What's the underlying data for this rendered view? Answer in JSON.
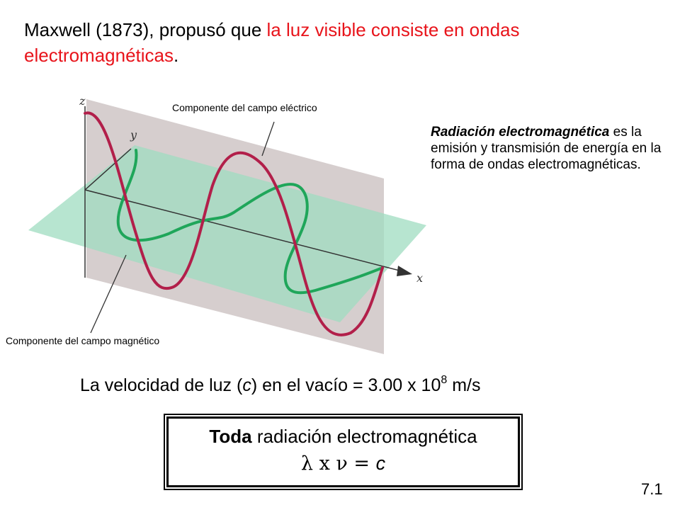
{
  "headline": {
    "part1": "Maxwell  (1873), propusó que ",
    "part2_red": "la luz visible consiste en ondas electromagnéticas",
    "part3": "."
  },
  "diagram": {
    "label_electric": "Componente del campo eléctrico",
    "label_magnetic": "Componente del campo magnético",
    "axis_z": "z",
    "axis_y": "y",
    "axis_x": "x",
    "colors": {
      "electric_wave": "#b21f4a",
      "magnetic_wave": "#1fa65a",
      "vertical_plane": "#cfc6c6",
      "horizontal_plane": "#9fdcc0"
    }
  },
  "side_text": {
    "bold_italic": "Radiación electromagnética",
    "rest": " es la emisión y transmisión de energía en la forma de ondas electromagnéticas."
  },
  "speed": {
    "prefix": "La velocidad de luz (",
    "c": "c",
    "middle": ") en el vacío = 3.00 x 10",
    "exp": "8",
    "suffix": " m/s"
  },
  "box": {
    "bold": "Toda",
    "rest": " radiación electromagnética",
    "formula_left": "λ x ν = ",
    "formula_c": "c"
  },
  "slide_number": "7.1"
}
